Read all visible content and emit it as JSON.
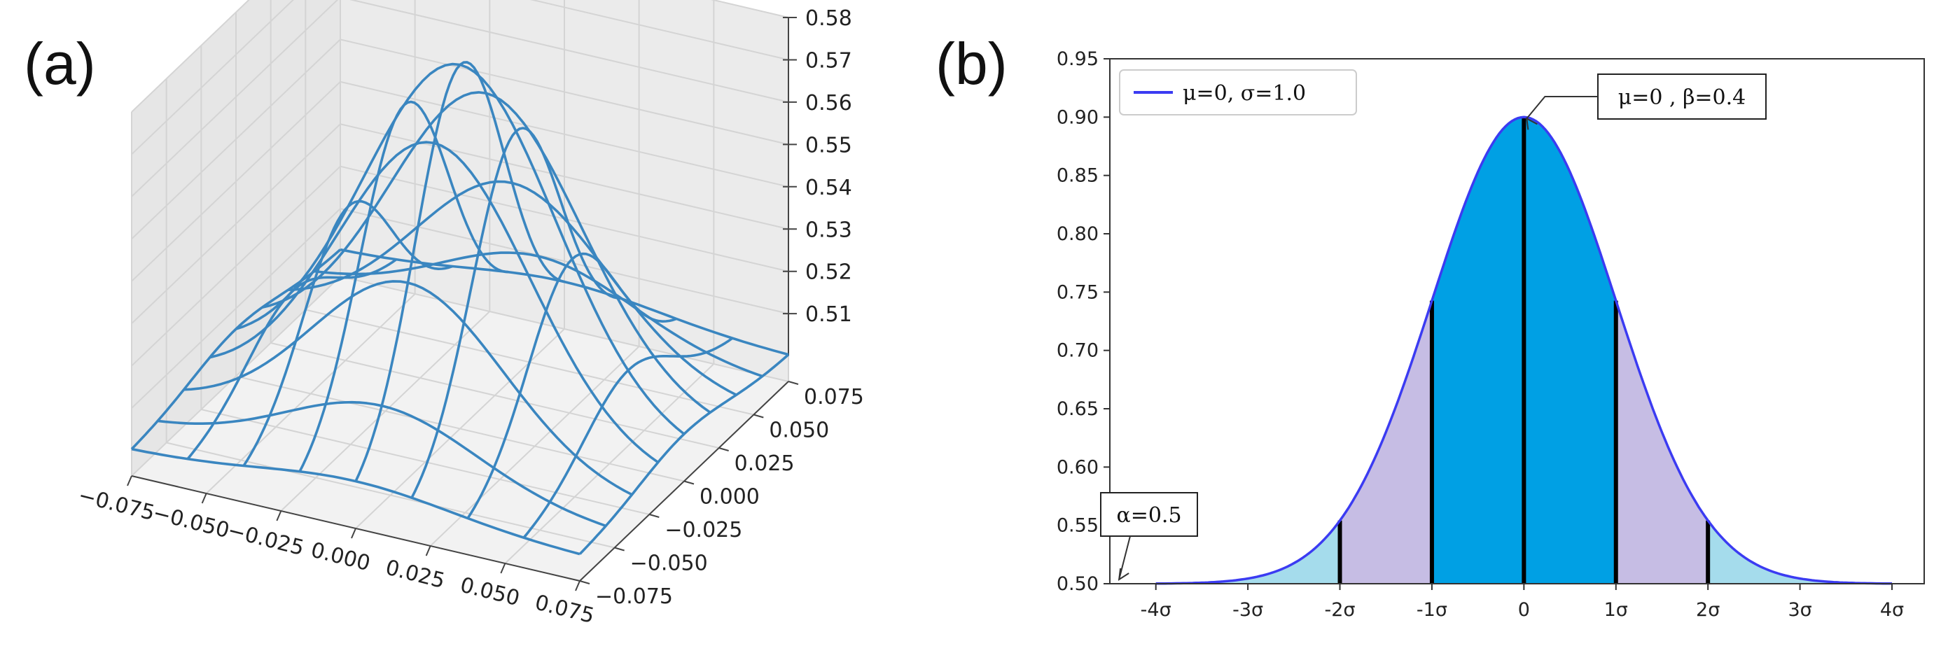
{
  "figure": {
    "panel_a_label": "(a)",
    "panel_b_label": "(b)"
  },
  "chart_data": [
    {
      "panel": "(a)",
      "type": "surface-wireframe",
      "x_ticks": [
        "−0.075",
        "−0.050",
        "−0.025",
        "0.000",
        "0.025",
        "0.050",
        "0.075"
      ],
      "y_ticks": [
        "−0.075",
        "−0.050",
        "−0.025",
        "0.000",
        "0.025",
        "0.050",
        "0.075"
      ],
      "z_ticks": [
        "0.51",
        "0.52",
        "0.53",
        "0.54",
        "0.55",
        "0.56",
        "0.57",
        "0.58"
      ],
      "x_range": [
        -0.075,
        0.075
      ],
      "y_range": [
        -0.075,
        0.075
      ],
      "z_range": [
        0.5,
        0.58
      ],
      "surface": {
        "form": "gaussian bump",
        "base": 0.5,
        "peak": 0.58,
        "center_x": 0.0,
        "center_y": 0.0
      },
      "grid_lines_per_axis": 9,
      "color": "#3a86c0"
    },
    {
      "panel": "(b)",
      "type": "line",
      "series": [
        {
          "name": "μ=0, σ=1.0",
          "mu": 0,
          "sigma": 1.0,
          "baseline": 0.5,
          "peak": 0.9,
          "color": "#3b3bf2"
        }
      ],
      "x_ticks": [
        {
          "value": -4,
          "label": "-4σ"
        },
        {
          "value": -3,
          "label": "-3σ"
        },
        {
          "value": -2,
          "label": "-2σ"
        },
        {
          "value": -1,
          "label": "-1σ"
        },
        {
          "value": 0,
          "label": "0"
        },
        {
          "value": 1,
          "label": "1σ"
        },
        {
          "value": 2,
          "label": "2σ"
        },
        {
          "value": 3,
          "label": "3σ"
        },
        {
          "value": 4,
          "label": "4σ"
        }
      ],
      "y_ticks": [
        "0.50",
        "0.55",
        "0.60",
        "0.65",
        "0.70",
        "0.75",
        "0.80",
        "0.85",
        "0.90",
        "0.95"
      ],
      "xlim": [
        -4.5,
        4.35
      ],
      "ylim": [
        0.5,
        0.95
      ],
      "legend_position": "top-left",
      "shaded_bands": [
        {
          "from": -1,
          "to": 1,
          "color": "#00a0e4"
        },
        {
          "from": -2,
          "to": -1,
          "color": "#c6bde4"
        },
        {
          "from": 1,
          "to": 2,
          "color": "#c6bde4"
        },
        {
          "from": -4,
          "to": -2,
          "color": "#a5dcec"
        },
        {
          "from": 2,
          "to": 4,
          "color": "#a5dcec"
        }
      ],
      "vertical_lines_at": [
        -2,
        -1,
        0,
        1,
        2
      ],
      "annotations": [
        {
          "text": "μ=0 , β=0.4",
          "x": 0,
          "y": 0.9
        },
        {
          "text": "α=0.5",
          "x": -4.4,
          "y": 0.5
        }
      ]
    }
  ]
}
